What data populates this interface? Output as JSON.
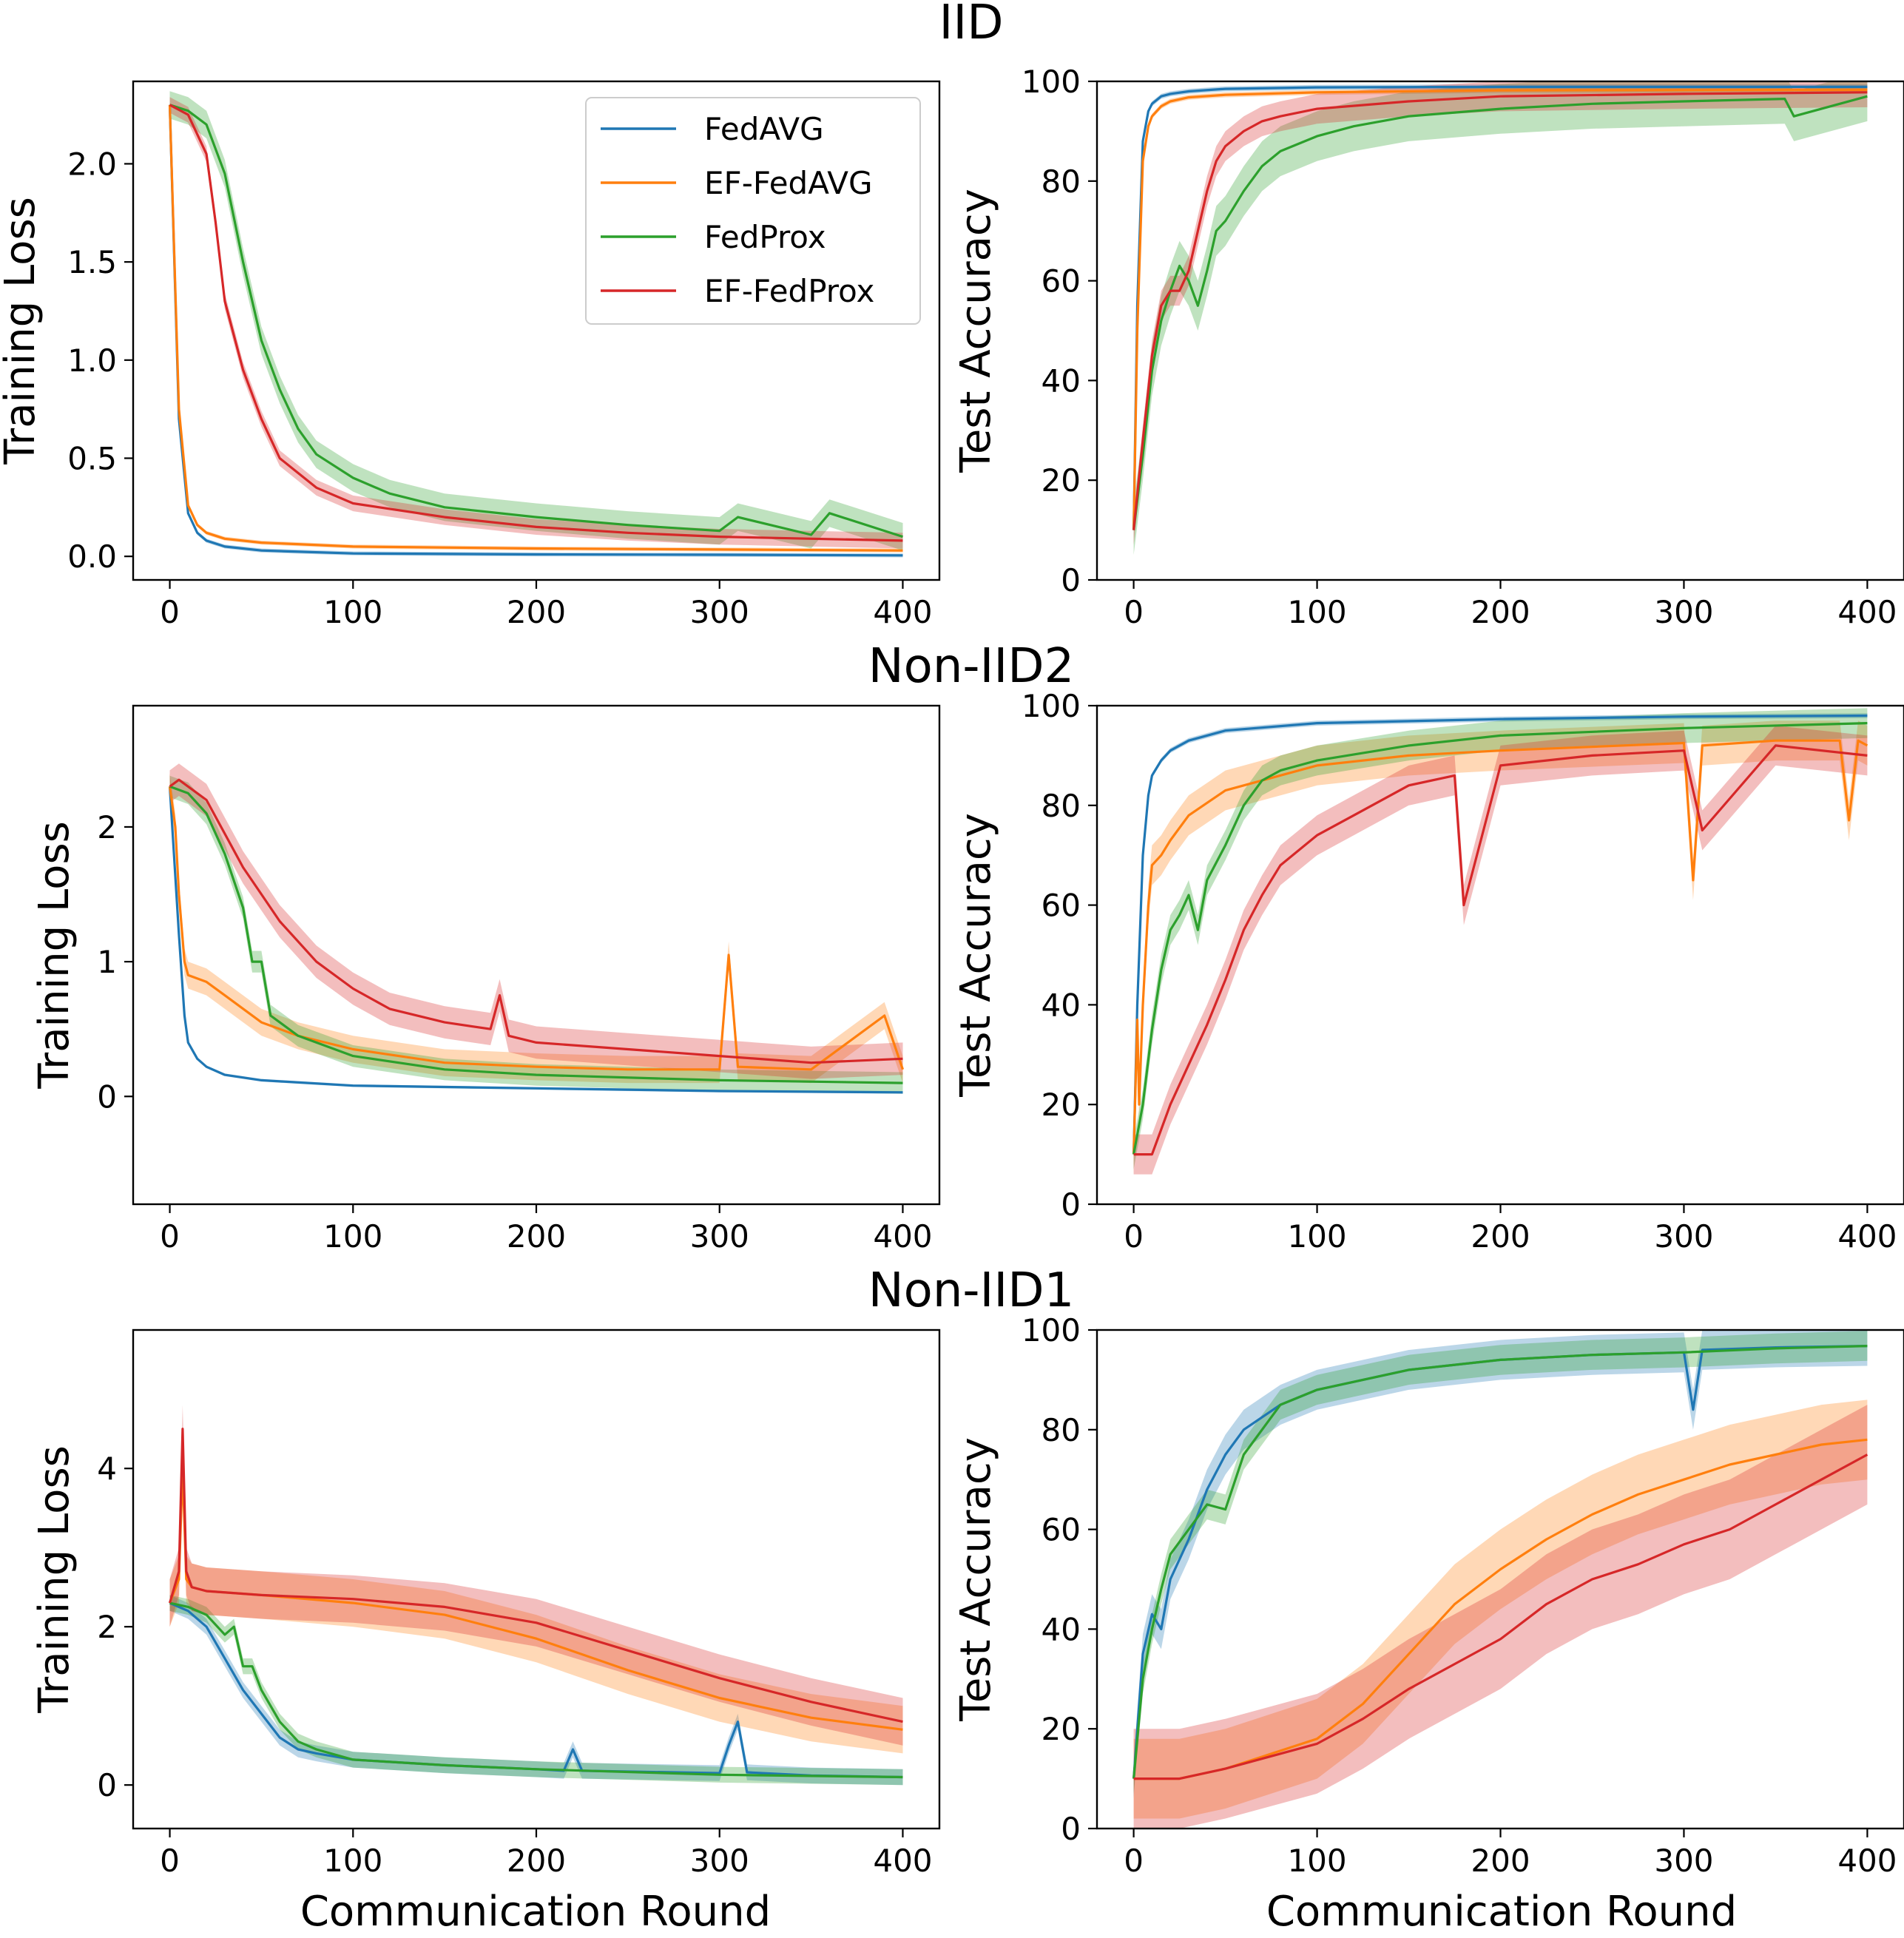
{
  "colors": {
    "FedAVG": "#1f77b4",
    "EF-FedAVG": "#ff7f0e",
    "FedProx": "#2ca02c",
    "EF-FedProx": "#d62728"
  },
  "legend": [
    "FedAVG",
    "EF-FedAVG",
    "FedProx",
    "EF-FedProx"
  ],
  "x_label": "Communication Round",
  "chart_data": [
    {
      "type": "line",
      "row_title": "IID",
      "ylabel": "Training Loss",
      "xlim": [
        -20,
        420
      ],
      "ylim": [
        -0.12,
        2.42
      ],
      "xticks": [
        0,
        100,
        200,
        300,
        400
      ],
      "yticks": [
        0.0,
        0.5,
        1.0,
        1.5,
        2.0
      ],
      "ytick_labels": [
        "0.0",
        "0.5",
        "1.0",
        "1.5",
        "2.0"
      ],
      "legend": true,
      "series": [
        {
          "name": "FedAVG",
          "x": [
            0,
            5,
            10,
            15,
            20,
            30,
            50,
            100,
            200,
            300,
            400
          ],
          "y": [
            2.3,
            0.7,
            0.22,
            0.12,
            0.08,
            0.05,
            0.03,
            0.015,
            0.01,
            0.008,
            0.005
          ],
          "band": 0.01
        },
        {
          "name": "EF-FedAVG",
          "x": [
            0,
            5,
            10,
            15,
            20,
            30,
            50,
            100,
            200,
            300,
            400
          ],
          "y": [
            2.3,
            0.75,
            0.26,
            0.16,
            0.12,
            0.09,
            0.07,
            0.05,
            0.04,
            0.035,
            0.03
          ],
          "band": 0.01
        },
        {
          "name": "FedProx",
          "x": [
            0,
            10,
            20,
            30,
            40,
            50,
            60,
            70,
            80,
            100,
            120,
            150,
            170,
            200,
            250,
            300,
            310,
            350,
            360,
            400
          ],
          "y": [
            2.3,
            2.27,
            2.2,
            1.95,
            1.5,
            1.1,
            0.85,
            0.65,
            0.52,
            0.4,
            0.32,
            0.25,
            0.23,
            0.2,
            0.16,
            0.13,
            0.2,
            0.11,
            0.22,
            0.1
          ],
          "band": 0.07
        },
        {
          "name": "EF-FedProx",
          "x": [
            0,
            10,
            20,
            25,
            30,
            40,
            50,
            60,
            80,
            100,
            150,
            200,
            250,
            300,
            350,
            400
          ],
          "y": [
            2.3,
            2.25,
            2.05,
            1.7,
            1.3,
            0.95,
            0.7,
            0.5,
            0.35,
            0.27,
            0.2,
            0.15,
            0.12,
            0.1,
            0.09,
            0.08
          ],
          "band": 0.04
        }
      ]
    },
    {
      "type": "line",
      "row_title": "",
      "ylabel": "Test Accuracy",
      "xlim": [
        -20,
        420
      ],
      "ylim": [
        0,
        100
      ],
      "xticks": [
        0,
        100,
        200,
        300,
        400
      ],
      "yticks": [
        0,
        20,
        40,
        60,
        80,
        100
      ],
      "ytick_labels": [
        "0",
        "20",
        "40",
        "60",
        "80",
        "100"
      ],
      "legend": false,
      "series": [
        {
          "name": "FedAVG",
          "x": [
            0,
            2,
            5,
            8,
            10,
            15,
            20,
            30,
            50,
            100,
            200,
            400
          ],
          "y": [
            10,
            55,
            88,
            94,
            95.5,
            97,
            97.5,
            98,
            98.5,
            98.8,
            98.9,
            98.9
          ],
          "band": 0.5
        },
        {
          "name": "EF-FedAVG",
          "x": [
            0,
            2,
            5,
            8,
            10,
            15,
            20,
            30,
            50,
            100,
            200,
            400
          ],
          "y": [
            10,
            50,
            84,
            91,
            93,
            95,
            96,
            96.8,
            97.3,
            97.8,
            98.2,
            98.3
          ],
          "band": 0.5
        },
        {
          "name": "FedProx",
          "x": [
            0,
            5,
            10,
            15,
            20,
            25,
            30,
            35,
            40,
            45,
            50,
            60,
            70,
            80,
            100,
            120,
            150,
            200,
            250,
            300,
            355,
            360,
            400
          ],
          "y": [
            10,
            25,
            42,
            52,
            58,
            63,
            60,
            55,
            62,
            70,
            72,
            78,
            83,
            86,
            89,
            91,
            93,
            94.5,
            95.5,
            96,
            96.5,
            93,
            97
          ],
          "band": 5
        },
        {
          "name": "EF-FedProx",
          "x": [
            0,
            5,
            10,
            15,
            20,
            25,
            30,
            35,
            40,
            45,
            50,
            60,
            70,
            80,
            100,
            150,
            200,
            300,
            400
          ],
          "y": [
            10,
            28,
            45,
            55,
            58,
            58,
            62,
            70,
            78,
            84,
            87,
            90,
            92,
            93,
            94.5,
            96,
            97,
            97.5,
            97.8
          ],
          "band": 3
        }
      ]
    },
    {
      "type": "line",
      "row_title": "Non-IID2",
      "ylabel": "Training Loss",
      "xlim": [
        -20,
        420
      ],
      "ylim": [
        -0.8,
        2.9
      ],
      "xticks": [
        0,
        100,
        200,
        300,
        400
      ],
      "yticks": [
        0,
        1,
        2
      ],
      "ytick_labels": [
        "0",
        "1",
        "2"
      ],
      "legend": false,
      "series": [
        {
          "name": "FedAVG",
          "x": [
            0,
            5,
            8,
            10,
            15,
            20,
            30,
            50,
            100,
            200,
            300,
            400
          ],
          "y": [
            2.3,
            1.2,
            0.6,
            0.4,
            0.28,
            0.22,
            0.16,
            0.12,
            0.08,
            0.06,
            0.04,
            0.03
          ],
          "band": 0.01
        },
        {
          "name": "EF-FedAVG",
          "x": [
            0,
            3,
            5,
            8,
            10,
            20,
            30,
            50,
            70,
            100,
            150,
            200,
            250,
            300,
            305,
            310,
            350,
            390,
            400
          ],
          "y": [
            2.3,
            2.0,
            1.5,
            1.0,
            0.9,
            0.85,
            0.75,
            0.55,
            0.45,
            0.35,
            0.25,
            0.22,
            0.2,
            0.2,
            1.05,
            0.22,
            0.2,
            0.6,
            0.2
          ],
          "band": 0.1
        },
        {
          "name": "FedProx",
          "x": [
            0,
            10,
            20,
            30,
            40,
            45,
            50,
            55,
            60,
            70,
            100,
            150,
            200,
            300,
            400
          ],
          "y": [
            2.3,
            2.25,
            2.1,
            1.8,
            1.4,
            1.0,
            1.0,
            0.6,
            0.55,
            0.45,
            0.3,
            0.2,
            0.16,
            0.12,
            0.1
          ],
          "band": 0.08
        },
        {
          "name": "EF-FedProx",
          "x": [
            0,
            5,
            10,
            20,
            30,
            40,
            50,
            60,
            70,
            80,
            100,
            120,
            150,
            175,
            180,
            185,
            200,
            250,
            300,
            350,
            400
          ],
          "y": [
            2.3,
            2.35,
            2.3,
            2.2,
            1.95,
            1.7,
            1.5,
            1.3,
            1.15,
            1.0,
            0.8,
            0.65,
            0.55,
            0.5,
            0.75,
            0.45,
            0.4,
            0.35,
            0.3,
            0.25,
            0.28
          ],
          "band": 0.12
        }
      ]
    },
    {
      "type": "line",
      "row_title": "",
      "ylabel": "Test Accuracy",
      "xlim": [
        -20,
        420
      ],
      "ylim": [
        0,
        100
      ],
      "xticks": [
        0,
        100,
        200,
        300,
        400
      ],
      "yticks": [
        0,
        20,
        40,
        60,
        80,
        100
      ],
      "ytick_labels": [
        "0",
        "20",
        "40",
        "60",
        "80",
        "100"
      ],
      "legend": false,
      "series": [
        {
          "name": "FedAVG",
          "x": [
            0,
            2,
            5,
            8,
            10,
            15,
            20,
            30,
            50,
            100,
            200,
            300,
            400
          ],
          "y": [
            10,
            40,
            70,
            82,
            86,
            89,
            91,
            93,
            95,
            96.5,
            97.3,
            97.8,
            98
          ],
          "band": 0.5
        },
        {
          "name": "EF-FedAVG",
          "x": [
            0,
            2,
            3,
            5,
            8,
            10,
            15,
            20,
            30,
            50,
            100,
            150,
            200,
            300,
            305,
            310,
            350,
            385,
            390,
            395,
            400
          ],
          "y": [
            10,
            37,
            20,
            40,
            60,
            68,
            70,
            73,
            78,
            83,
            88,
            90,
            91,
            92.5,
            65,
            92,
            93,
            93,
            77,
            93,
            92
          ],
          "band": 4
        },
        {
          "name": "FedProx",
          "x": [
            0,
            5,
            10,
            15,
            20,
            25,
            30,
            35,
            40,
            50,
            60,
            70,
            80,
            100,
            150,
            200,
            300,
            400
          ],
          "y": [
            10,
            20,
            35,
            47,
            55,
            58,
            62,
            55,
            65,
            72,
            80,
            85,
            87,
            89,
            92,
            94,
            95.5,
            96.5
          ],
          "band": 3
        },
        {
          "name": "EF-FedProx",
          "x": [
            0,
            5,
            10,
            15,
            20,
            30,
            40,
            50,
            60,
            70,
            80,
            100,
            120,
            150,
            175,
            180,
            200,
            250,
            300,
            310,
            350,
            400
          ],
          "y": [
            10,
            10,
            10,
            15,
            20,
            28,
            36,
            45,
            55,
            62,
            68,
            74,
            78,
            84,
            86,
            60,
            88,
            90,
            91,
            75,
            92,
            90
          ],
          "band": 4
        }
      ]
    },
    {
      "type": "line",
      "row_title": "Non-IID1",
      "ylabel": "Training Loss",
      "xlim": [
        -20,
        420
      ],
      "ylim": [
        -0.55,
        5.75
      ],
      "xticks": [
        0,
        100,
        200,
        300,
        400
      ],
      "yticks": [
        0,
        2,
        4
      ],
      "ytick_labels": [
        "0",
        "2",
        "4"
      ],
      "legend": false,
      "series": [
        {
          "name": "FedAVG",
          "x": [
            0,
            10,
            20,
            30,
            40,
            50,
            60,
            70,
            80,
            100,
            150,
            200,
            215,
            220,
            225,
            300,
            305,
            310,
            315,
            350,
            400
          ],
          "y": [
            2.3,
            2.2,
            2.0,
            1.6,
            1.2,
            0.9,
            0.6,
            0.45,
            0.4,
            0.32,
            0.25,
            0.2,
            0.18,
            0.45,
            0.18,
            0.15,
            0.5,
            0.8,
            0.16,
            0.12,
            0.1
          ],
          "band": 0.1
        },
        {
          "name": "EF-FedAVG",
          "x": [
            0,
            5,
            7,
            9,
            12,
            20,
            50,
            100,
            150,
            200,
            250,
            300,
            350,
            400
          ],
          "y": [
            2.3,
            2.6,
            4.0,
            2.6,
            2.5,
            2.45,
            2.4,
            2.3,
            2.15,
            1.85,
            1.45,
            1.1,
            0.85,
            0.7
          ],
          "band": 0.3
        },
        {
          "name": "FedProx",
          "x": [
            0,
            10,
            20,
            30,
            35,
            40,
            45,
            50,
            60,
            70,
            80,
            100,
            150,
            200,
            300,
            400
          ],
          "y": [
            2.3,
            2.25,
            2.15,
            1.9,
            2.0,
            1.5,
            1.5,
            1.2,
            0.8,
            0.55,
            0.45,
            0.32,
            0.25,
            0.2,
            0.13,
            0.1
          ],
          "band": 0.1
        },
        {
          "name": "EF-FedProx",
          "x": [
            0,
            5,
            7,
            9,
            12,
            20,
            50,
            100,
            150,
            200,
            250,
            300,
            350,
            400
          ],
          "y": [
            2.3,
            2.7,
            4.5,
            2.7,
            2.5,
            2.45,
            2.4,
            2.35,
            2.25,
            2.05,
            1.7,
            1.35,
            1.05,
            0.8
          ],
          "band": 0.3
        }
      ]
    },
    {
      "type": "line",
      "row_title": "",
      "ylabel": "Test Accuracy",
      "xlim": [
        -20,
        420
      ],
      "ylim": [
        0,
        100
      ],
      "xticks": [
        0,
        100,
        200,
        300,
        400
      ],
      "yticks": [
        0,
        20,
        40,
        60,
        80,
        100
      ],
      "ytick_labels": [
        "0",
        "20",
        "40",
        "60",
        "80",
        "100"
      ],
      "legend": false,
      "series": [
        {
          "name": "FedAVG",
          "x": [
            0,
            5,
            10,
            15,
            20,
            30,
            40,
            50,
            60,
            80,
            100,
            150,
            200,
            250,
            300,
            305,
            310,
            350,
            400
          ],
          "y": [
            10,
            35,
            43,
            40,
            50,
            58,
            68,
            75,
            80,
            85,
            88,
            92,
            94,
            95,
            95.5,
            84,
            96,
            96.5,
            96.8
          ],
          "band": 4
        },
        {
          "name": "EF-FedAVG",
          "x": [
            0,
            25,
            50,
            100,
            125,
            150,
            175,
            200,
            225,
            250,
            275,
            300,
            325,
            350,
            375,
            400
          ],
          "y": [
            10,
            10,
            12,
            18,
            25,
            35,
            45,
            52,
            58,
            63,
            67,
            70,
            73,
            75,
            77,
            78
          ],
          "band": 8
        },
        {
          "name": "FedProx",
          "x": [
            0,
            5,
            10,
            15,
            20,
            30,
            40,
            50,
            60,
            80,
            100,
            150,
            200,
            250,
            300,
            350,
            400
          ],
          "y": [
            10,
            30,
            40,
            48,
            55,
            60,
            65,
            64,
            75,
            85,
            88,
            92,
            94,
            95,
            95.5,
            96.3,
            96.8
          ],
          "band": 3
        },
        {
          "name": "EF-FedProx",
          "x": [
            0,
            25,
            50,
            100,
            125,
            150,
            175,
            200,
            225,
            250,
            275,
            300,
            325,
            350,
            375,
            400
          ],
          "y": [
            10,
            10,
            12,
            17,
            22,
            28,
            33,
            38,
            45,
            50,
            53,
            57,
            60,
            65,
            70,
            75
          ],
          "band": 10
        }
      ]
    }
  ]
}
